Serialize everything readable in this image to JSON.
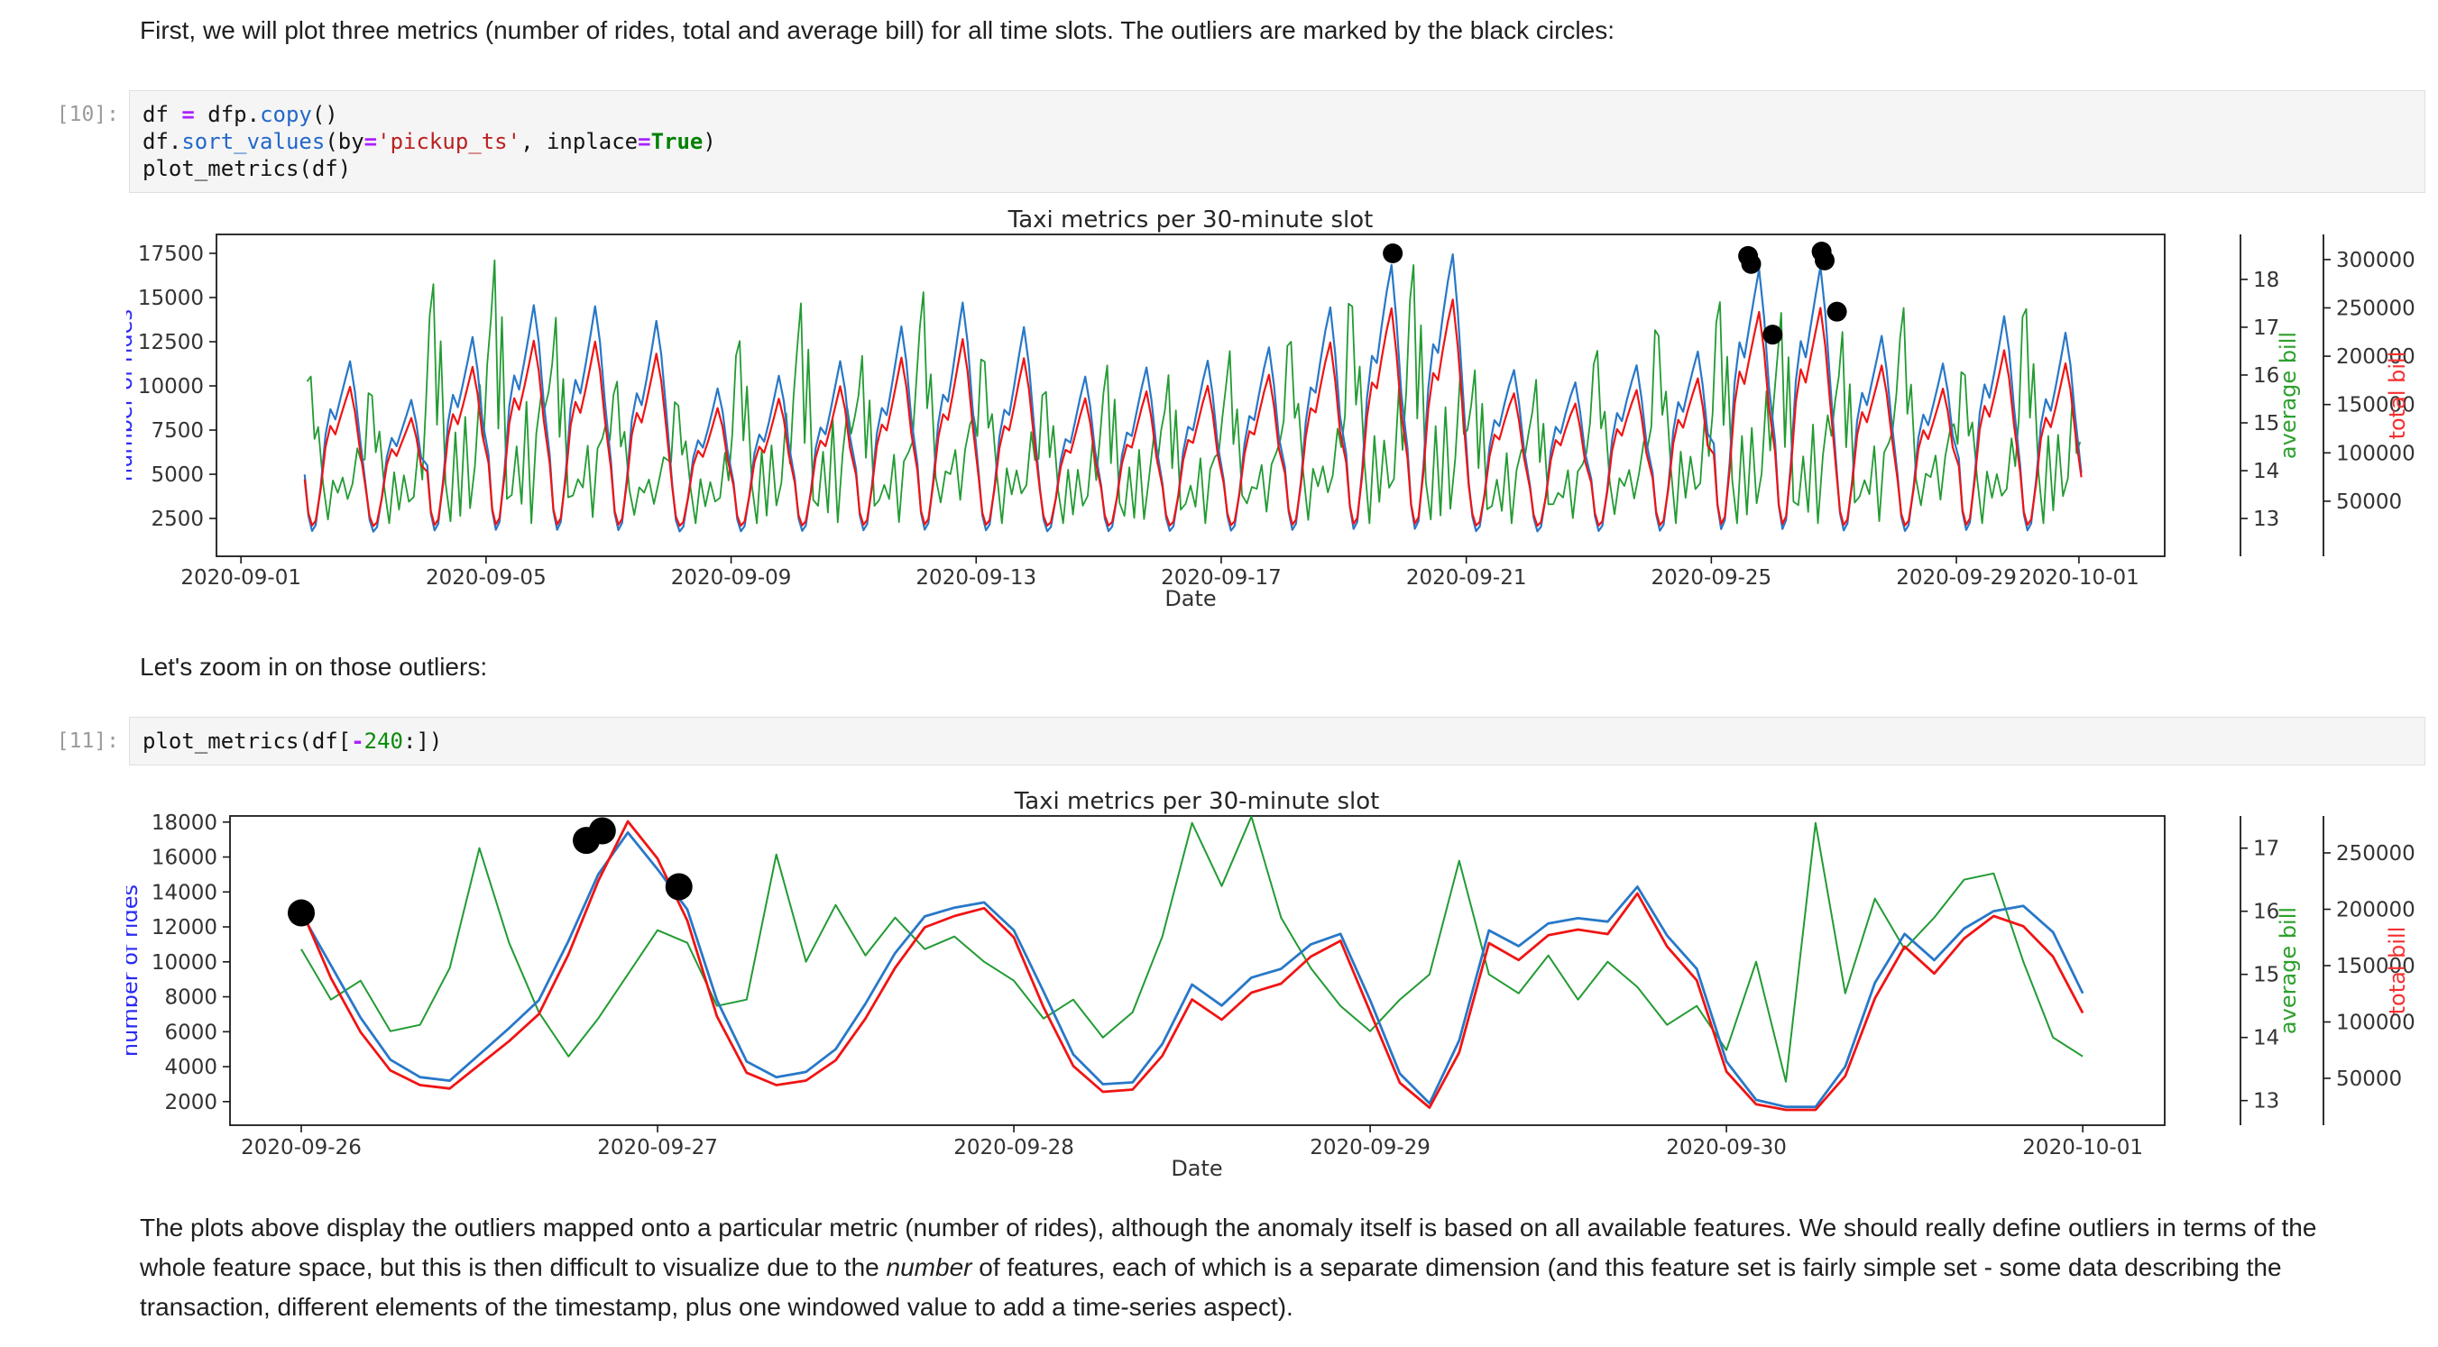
{
  "notebook": {
    "md1": "First, we will plot three metrics (number of rides, total and average bill) for all time slots. The outliers are marked by the black circles:",
    "md2": "Let's zoom in on those outliers:",
    "md3": {
      "pre": "The plots above display the outliers mapped onto a particular metric (number of rides), although the anomaly itself is based on all available features. We should really define outliers in terms of the whole feature space, but this is then difficult to visualize due to the ",
      "italic": "number",
      "post": " of features, each of which is a separate dimension (and this feature set is fairly simple set - some data describing the transaction, different elements of the timestamp, plus one windowed value to add a time-series aspect)."
    },
    "cells": [
      {
        "prompt": "[10]:",
        "lines": [
          [
            {
              "t": "df ",
              "c": "pl"
            },
            {
              "t": "=",
              "c": "op"
            },
            {
              "t": " dfp.",
              "c": "pl"
            },
            {
              "t": "copy",
              "c": "fn"
            },
            {
              "t": "()",
              "c": "pl"
            }
          ],
          [
            {
              "t": "df.",
              "c": "pl"
            },
            {
              "t": "sort_values",
              "c": "fn"
            },
            {
              "t": "(by",
              "c": "pl"
            },
            {
              "t": "=",
              "c": "op"
            },
            {
              "t": "'pickup_ts'",
              "c": "str"
            },
            {
              "t": ", inplace",
              "c": "pl"
            },
            {
              "t": "=",
              "c": "op"
            },
            {
              "t": "True",
              "c": "kw"
            },
            {
              "t": ")",
              "c": "pl"
            }
          ],
          [
            {
              "t": "plot_metrics(df)",
              "c": "pl"
            }
          ]
        ]
      },
      {
        "prompt": "[11]:",
        "lines": [
          [
            {
              "t": "plot_metrics(df[",
              "c": "pl"
            },
            {
              "t": "-",
              "c": "op"
            },
            {
              "t": "240",
              "c": "num"
            },
            {
              "t": ":])",
              "c": "pl"
            }
          ]
        ]
      }
    ]
  },
  "chart_data": [
    {
      "type": "line",
      "title": "Taxi metrics per 30-minute slot",
      "xlabel": "Date",
      "x_unit": "days since 2020-09-01 00:00",
      "xlim": [
        -0.4,
        31.4
      ],
      "x_ticks": [
        {
          "v": 0,
          "label": "2020-09-01"
        },
        {
          "v": 4,
          "label": "2020-09-05"
        },
        {
          "v": 8,
          "label": "2020-09-09"
        },
        {
          "v": 12,
          "label": "2020-09-13"
        },
        {
          "v": 16,
          "label": "2020-09-17"
        },
        {
          "v": 20,
          "label": "2020-09-21"
        },
        {
          "v": 24,
          "label": "2020-09-25"
        },
        {
          "v": 28,
          "label": "2020-09-29"
        },
        {
          "v": 30,
          "label": "2020-10-01"
        }
      ],
      "axes": [
        {
          "id": "rides",
          "side": "left",
          "label": "number of rides",
          "label_color": "#2a2af5",
          "line_color": "#2878c8",
          "ticks": [
            17500,
            15000,
            12500,
            10000,
            7500,
            5000,
            2500
          ],
          "ylim": [
            360,
            18570
          ]
        },
        {
          "id": "avg",
          "side": "right",
          "label": "average bill",
          "label_color": "#2ca02c",
          "line_color": "#229b33",
          "ticks": [
            18,
            17,
            16,
            15,
            14,
            13
          ],
          "ylim": [
            12.21,
            18.94
          ]
        },
        {
          "id": "total",
          "side": "right2",
          "label": "total bill",
          "label_color": "#f53030",
          "line_color": "#f01414",
          "ticks": [
            300000,
            250000,
            200000,
            150000,
            100000,
            50000
          ],
          "ylim": [
            -7000,
            326000
          ]
        }
      ],
      "daily_series": {
        "comment": "per-day envelope, days indexed from 2020-09-02 (day=1) to 2020-10-01 (day=30)",
        "start_day": 1,
        "data_start": 1.04,
        "data_end": 30.05,
        "rides_min": 1600,
        "rides_peaks": [
          11900,
          9600,
          13300,
          15100,
          14900,
          13900,
          9900,
          10500,
          11200,
          13000,
          14200,
          12800,
          10100,
          10600,
          11000,
          11800,
          14100,
          16600,
          17400,
          11000,
          10400,
          11500,
          12400,
          17350,
          17550,
          13400,
          11700,
          14400,
          13300,
          12000
        ],
        "total_min": 22000,
        "total_peaks": [
          176000,
          142000,
          197000,
          224000,
          221000,
          206000,
          147000,
          155000,
          166000,
          193000,
          210000,
          190000,
          150000,
          157000,
          163000,
          175000,
          209000,
          246000,
          258000,
          163000,
          154000,
          170000,
          184000,
          257000,
          262000,
          199000,
          173000,
          213000,
          197000,
          180000
        ],
        "avg_min": 12.9,
        "avg_max": [
          16.2,
          15.8,
          17.9,
          18.4,
          17.2,
          16.0,
          15.6,
          16.8,
          17.5,
          16.4,
          17.8,
          16.6,
          15.8,
          16.2,
          16.0,
          16.5,
          17.0,
          17.8,
          18.3,
          16.1,
          15.9,
          16.7,
          17.2,
          17.6,
          17.3,
          16.9,
          17.5,
          16.3,
          17.6,
          16.0
        ],
        "profile_rides": [
          [
            0.04,
            0.32
          ],
          [
            0.1,
            0.1
          ],
          [
            0.16,
            0.02
          ],
          [
            0.22,
            0.05
          ],
          [
            0.3,
            0.25
          ],
          [
            0.38,
            0.52
          ],
          [
            0.46,
            0.66
          ],
          [
            0.54,
            0.62
          ],
          [
            0.62,
            0.75
          ],
          [
            0.7,
            0.88
          ],
          [
            0.78,
            1.0
          ],
          [
            0.86,
            0.82
          ],
          [
            0.94,
            0.55
          ]
        ],
        "profile_avg": [
          [
            0.02,
            0.55
          ],
          [
            0.08,
            0.85
          ],
          [
            0.14,
            1.0
          ],
          [
            0.2,
            0.45
          ],
          [
            0.26,
            0.7
          ],
          [
            0.34,
            0.18
          ],
          [
            0.42,
            0.05
          ],
          [
            0.5,
            0.3
          ],
          [
            0.58,
            0.12
          ],
          [
            0.66,
            0.38
          ],
          [
            0.74,
            0.08
          ],
          [
            0.82,
            0.28
          ],
          [
            0.9,
            0.5
          ],
          [
            0.96,
            0.4
          ]
        ]
      },
      "outliers_rides": [
        [
          18.8,
          17500
        ],
        [
          24.6,
          17350
        ],
        [
          24.65,
          16900
        ],
        [
          25.0,
          12900
        ],
        [
          25.8,
          17600
        ],
        [
          25.85,
          17100
        ],
        [
          26.05,
          14200
        ]
      ]
    },
    {
      "type": "line",
      "title": "Taxi metrics per 30-minute slot",
      "xlabel": "Date",
      "x_unit": "days since 2020-09-26 00:00",
      "xlim": [
        -0.2,
        5.23
      ],
      "x_ticks": [
        {
          "v": 0,
          "label": "2020-09-26"
        },
        {
          "v": 1,
          "label": "2020-09-27"
        },
        {
          "v": 2,
          "label": "2020-09-28"
        },
        {
          "v": 3,
          "label": "2020-09-29"
        },
        {
          "v": 4,
          "label": "2020-09-30"
        },
        {
          "v": 5,
          "label": "2020-10-01"
        }
      ],
      "axes": [
        {
          "id": "rides",
          "side": "left",
          "label": "number of rides",
          "label_color": "#2a2af5",
          "line_color": "#2878c8",
          "ticks": [
            18000,
            16000,
            14000,
            12000,
            10000,
            8000,
            6000,
            4000,
            2000
          ],
          "ylim": [
            650,
            18350
          ]
        },
        {
          "id": "avg",
          "side": "right",
          "label": "average bill",
          "label_color": "#2ca02c",
          "line_color": "#229b33",
          "ticks": [
            17,
            16,
            15,
            14,
            13
          ],
          "ylim": [
            12.61,
            17.51
          ]
        },
        {
          "id": "total",
          "side": "right2",
          "label": "total bill",
          "label_color": "#f53030",
          "line_color": "#f01414",
          "ticks": [
            250000,
            200000,
            150000,
            100000,
            50000
          ],
          "ylim": [
            8400,
            282800
          ]
        }
      ],
      "series": {
        "step_days": 0.0833333,
        "rides": [
          12800,
          9800,
          6800,
          4400,
          3400,
          3200,
          4700,
          6200,
          7800,
          11200,
          15000,
          17400,
          15300,
          13000,
          7800,
          4300,
          3400,
          3700,
          5000,
          7600,
          10500,
          12600,
          13100,
          13400,
          11800,
          8300,
          4700,
          3000,
          3100,
          5300,
          8700,
          7500,
          9100,
          9600,
          11000,
          11600,
          7800,
          3600,
          1900,
          5500,
          11800,
          10900,
          12200,
          12500,
          12300,
          14300,
          11500,
          9600,
          4300,
          2100,
          1700,
          1700,
          4000,
          8800,
          11600,
          10100,
          11900,
          12900,
          13200,
          11700,
          8200
        ],
        "total": [
          200000,
          139000,
          91000,
          57000,
          44000,
          41000,
          62000,
          83000,
          107000,
          160000,
          225000,
          278000,
          245000,
          190000,
          105000,
          55000,
          44000,
          48000,
          66000,
          103000,
          148000,
          184000,
          194000,
          201000,
          175000,
          113000,
          61000,
          38000,
          40000,
          70000,
          120000,
          102000,
          126000,
          134000,
          158000,
          172000,
          109000,
          46000,
          24000,
          73000,
          170000,
          155000,
          177000,
          182000,
          178000,
          214000,
          167000,
          137000,
          56000,
          27000,
          22000,
          22000,
          52000,
          121000,
          167000,
          143000,
          174000,
          194000,
          185000,
          158000,
          108000
        ],
        "avg": [
          15.4,
          14.6,
          14.9,
          14.1,
          14.2,
          15.1,
          17.0,
          15.5,
          14.4,
          13.7,
          14.3,
          15.0,
          15.7,
          15.5,
          14.5,
          14.6,
          16.9,
          15.2,
          16.1,
          15.3,
          15.9,
          15.4,
          15.6,
          15.2,
          14.9,
          14.3,
          14.6,
          14.0,
          14.4,
          15.6,
          17.4,
          16.4,
          17.5,
          15.9,
          15.1,
          14.5,
          14.1,
          14.6,
          15.0,
          16.8,
          15.0,
          14.7,
          15.3,
          14.6,
          15.2,
          14.8,
          14.2,
          14.5,
          13.8,
          15.2,
          13.3,
          17.4,
          14.7,
          16.2,
          15.4,
          15.9,
          16.5,
          16.6,
          15.2,
          14.0,
          13.7
        ]
      },
      "outliers_rides": [
        [
          0.0,
          12800
        ],
        [
          0.8,
          16950
        ],
        [
          0.845,
          17500
        ],
        [
          1.06,
          14300
        ]
      ]
    }
  ]
}
